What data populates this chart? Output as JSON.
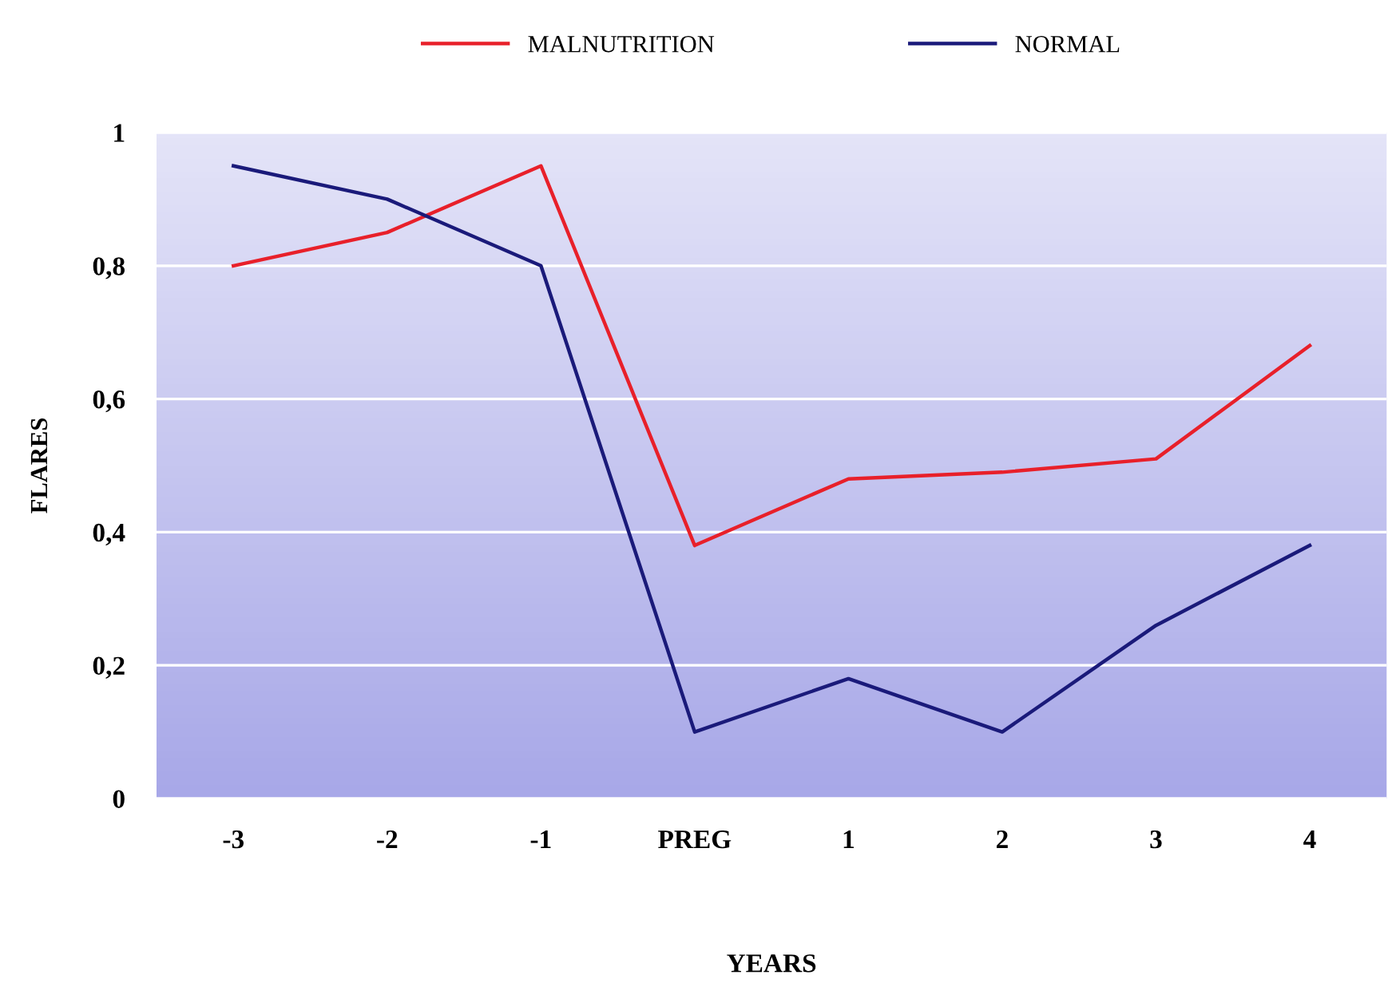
{
  "chart_data": {
    "type": "line",
    "xlabel": "YEARS",
    "ylabel": "FLARES",
    "categories": [
      "-3",
      "-2",
      "-1",
      "PREG",
      "1",
      "2",
      "3",
      "4"
    ],
    "series": [
      {
        "name": "MALNUTRITION",
        "color": "#e8202a",
        "values": [
          0.8,
          0.85,
          0.95,
          0.38,
          0.48,
          0.49,
          0.51,
          0.68
        ]
      },
      {
        "name": "NORMAL",
        "color": "#1a1a7a",
        "values": [
          0.95,
          0.9,
          0.8,
          0.1,
          0.18,
          0.1,
          0.26,
          0.38
        ]
      }
    ],
    "ylim": [
      0,
      1
    ],
    "yticks": [
      {
        "value": 0,
        "label": "0"
      },
      {
        "value": 0.2,
        "label": "0,2"
      },
      {
        "value": 0.4,
        "label": "0,4"
      },
      {
        "value": 0.6,
        "label": "0,6"
      },
      {
        "value": 0.8,
        "label": "0,8"
      },
      {
        "value": 1,
        "label": "1"
      }
    ],
    "grid": "y",
    "legend": "top",
    "marker": "none",
    "line_style": "solid"
  }
}
